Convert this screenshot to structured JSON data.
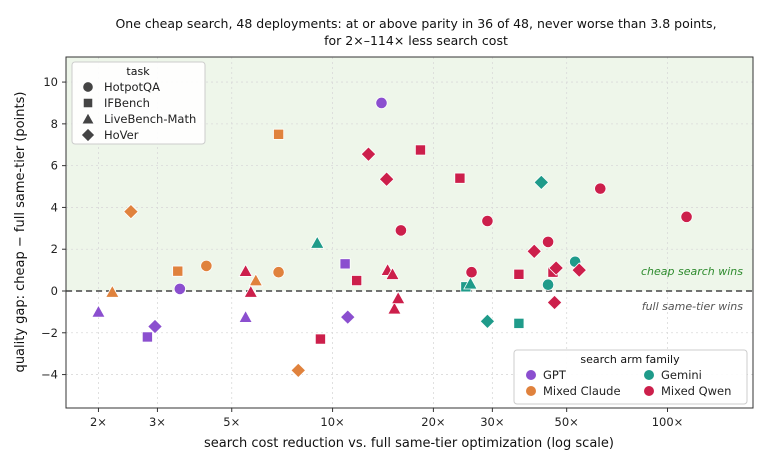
{
  "chart_data": {
    "type": "scatter",
    "title_line1": "One cheap search, 48 deployments: at or above parity in 36 of 48, never worse than 3.8 points,",
    "title_line2": "for 2×–114× less search cost",
    "xlabel": "search cost reduction vs. full same-tier optimization (log scale)",
    "ylabel": "quality gap: cheap − full same-tier (points)",
    "xscale": "log",
    "xlim": [
      1.6,
      180
    ],
    "ylim": [
      -5.6,
      11.2
    ],
    "x_ticks": [
      {
        "value": 2,
        "label": "2×"
      },
      {
        "value": 3,
        "label": "3×"
      },
      {
        "value": 5,
        "label": "5×"
      },
      {
        "value": 10,
        "label": "10×"
      },
      {
        "value": 20,
        "label": "20×"
      },
      {
        "value": 30,
        "label": "30×"
      },
      {
        "value": 50,
        "label": "50×"
      },
      {
        "value": 100,
        "label": "100×"
      }
    ],
    "y_ticks": [
      {
        "value": 10,
        "label": "10"
      },
      {
        "value": 8,
        "label": "8"
      },
      {
        "value": 6,
        "label": "6"
      },
      {
        "value": 4,
        "label": "4"
      },
      {
        "value": 2,
        "label": "2"
      },
      {
        "value": 0,
        "label": "0"
      },
      {
        "value": -2,
        "label": "−2"
      },
      {
        "value": -4,
        "label": "−4"
      }
    ],
    "grid": true,
    "parity_line": 0,
    "annotations": {
      "above": "cheap search wins",
      "below": "full same-tier wins"
    },
    "shaded_region": "y ≥ 0",
    "shading_color": "#eef6ea",
    "task_legend": {
      "title": "task",
      "placement": "top-left",
      "entries": [
        {
          "name": "HotpotQA",
          "marker": "circle"
        },
        {
          "name": "IFBench",
          "marker": "square"
        },
        {
          "name": "LiveBench-Math",
          "marker": "triangle"
        },
        {
          "name": "HoVer",
          "marker": "diamond"
        }
      ]
    },
    "family_legend": {
      "title": "search arm family",
      "placement": "bottom-right",
      "entries": [
        {
          "name": "GPT",
          "color": "#8b4fcf"
        },
        {
          "name": "Gemini",
          "color": "#1f9b8a"
        },
        {
          "name": "Mixed Claude",
          "color": "#e0823d"
        },
        {
          "name": "Mixed Qwen",
          "color": "#cc1f4b"
        }
      ]
    },
    "points": [
      {
        "x": 2.0,
        "y": -1.0,
        "task": "LiveBench-Math",
        "family": "GPT"
      },
      {
        "x": 2.8,
        "y": -2.2,
        "task": "IFBench",
        "family": "GPT"
      },
      {
        "x": 2.95,
        "y": -1.7,
        "task": "HoVer",
        "family": "GPT"
      },
      {
        "x": 3.5,
        "y": 0.1,
        "task": "HotpotQA",
        "family": "GPT"
      },
      {
        "x": 5.5,
        "y": -1.25,
        "task": "LiveBench-Math",
        "family": "GPT"
      },
      {
        "x": 10.9,
        "y": 1.3,
        "task": "IFBench",
        "family": "GPT"
      },
      {
        "x": 11.1,
        "y": -1.25,
        "task": "HoVer",
        "family": "GPT"
      },
      {
        "x": 14.0,
        "y": 9.0,
        "task": "HotpotQA",
        "family": "GPT"
      },
      {
        "x": 9.0,
        "y": 2.3,
        "task": "LiveBench-Math",
        "family": "Gemini"
      },
      {
        "x": 25.0,
        "y": 0.2,
        "task": "IFBench",
        "family": "Gemini"
      },
      {
        "x": 25.8,
        "y": 0.35,
        "task": "LiveBench-Math",
        "family": "Gemini"
      },
      {
        "x": 29.0,
        "y": -1.45,
        "task": "HoVer",
        "family": "Gemini"
      },
      {
        "x": 36.0,
        "y": -1.55,
        "task": "IFBench",
        "family": "Gemini"
      },
      {
        "x": 42.0,
        "y": 5.2,
        "task": "HoVer",
        "family": "Gemini"
      },
      {
        "x": 44.0,
        "y": 0.3,
        "task": "HotpotQA",
        "family": "Gemini"
      },
      {
        "x": 53.0,
        "y": 1.4,
        "task": "HotpotQA",
        "family": "Gemini"
      },
      {
        "x": 2.2,
        "y": -0.05,
        "task": "LiveBench-Math",
        "family": "Mixed Claude"
      },
      {
        "x": 2.5,
        "y": 3.8,
        "task": "HoVer",
        "family": "Mixed Claude"
      },
      {
        "x": 3.45,
        "y": 0.95,
        "task": "IFBench",
        "family": "Mixed Claude"
      },
      {
        "x": 4.2,
        "y": 1.2,
        "task": "HotpotQA",
        "family": "Mixed Claude"
      },
      {
        "x": 5.9,
        "y": 0.5,
        "task": "LiveBench-Math",
        "family": "Mixed Claude"
      },
      {
        "x": 6.9,
        "y": 0.9,
        "task": "HotpotQA",
        "family": "Mixed Claude"
      },
      {
        "x": 6.9,
        "y": 7.5,
        "task": "IFBench",
        "family": "Mixed Claude"
      },
      {
        "x": 7.9,
        "y": -3.8,
        "task": "HoVer",
        "family": "Mixed Claude"
      },
      {
        "x": 5.5,
        "y": 0.95,
        "task": "LiveBench-Math",
        "family": "Mixed Qwen"
      },
      {
        "x": 5.7,
        "y": -0.05,
        "task": "LiveBench-Math",
        "family": "Mixed Qwen"
      },
      {
        "x": 9.2,
        "y": -2.3,
        "task": "IFBench",
        "family": "Mixed Qwen"
      },
      {
        "x": 11.8,
        "y": 0.5,
        "task": "IFBench",
        "family": "Mixed Qwen"
      },
      {
        "x": 12.8,
        "y": 6.55,
        "task": "HoVer",
        "family": "Mixed Qwen"
      },
      {
        "x": 14.5,
        "y": 5.35,
        "task": "HoVer",
        "family": "Mixed Qwen"
      },
      {
        "x": 14.6,
        "y": 1.0,
        "task": "LiveBench-Math",
        "family": "Mixed Qwen"
      },
      {
        "x": 15.1,
        "y": 0.8,
        "task": "LiveBench-Math",
        "family": "Mixed Qwen"
      },
      {
        "x": 15.3,
        "y": -0.85,
        "task": "LiveBench-Math",
        "family": "Mixed Qwen"
      },
      {
        "x": 15.7,
        "y": -0.35,
        "task": "LiveBench-Math",
        "family": "Mixed Qwen"
      },
      {
        "x": 16.0,
        "y": 2.9,
        "task": "HotpotQA",
        "family": "Mixed Qwen"
      },
      {
        "x": 18.3,
        "y": 6.75,
        "task": "IFBench",
        "family": "Mixed Qwen"
      },
      {
        "x": 24.0,
        "y": 5.4,
        "task": "IFBench",
        "family": "Mixed Qwen"
      },
      {
        "x": 26.0,
        "y": 0.9,
        "task": "HotpotQA",
        "family": "Mixed Qwen"
      },
      {
        "x": 29.0,
        "y": 3.35,
        "task": "HotpotQA",
        "family": "Mixed Qwen"
      },
      {
        "x": 36.0,
        "y": 0.8,
        "task": "IFBench",
        "family": "Mixed Qwen"
      },
      {
        "x": 40.0,
        "y": 1.9,
        "task": "HoVer",
        "family": "Mixed Qwen"
      },
      {
        "x": 44.0,
        "y": 2.35,
        "task": "HotpotQA",
        "family": "Mixed Qwen"
      },
      {
        "x": 45.5,
        "y": 0.9,
        "task": "IFBench",
        "family": "Mixed Qwen"
      },
      {
        "x": 46.5,
        "y": 1.1,
        "task": "HoVer",
        "family": "Mixed Qwen"
      },
      {
        "x": 46.0,
        "y": -0.55,
        "task": "HoVer",
        "family": "Mixed Qwen"
      },
      {
        "x": 54.5,
        "y": 1.0,
        "task": "HoVer",
        "family": "Mixed Qwen"
      },
      {
        "x": 63.0,
        "y": 4.9,
        "task": "HotpotQA",
        "family": "Mixed Qwen"
      },
      {
        "x": 114.0,
        "y": 3.55,
        "task": "HotpotQA",
        "family": "Mixed Qwen"
      }
    ]
  }
}
